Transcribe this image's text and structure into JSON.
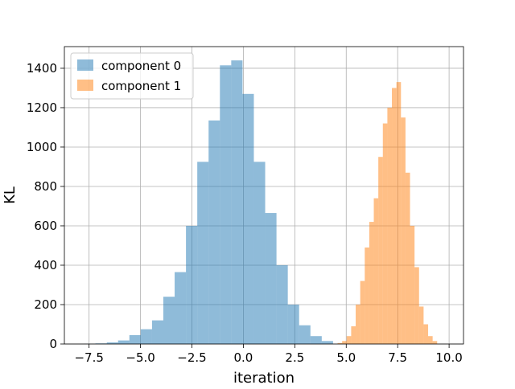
{
  "chart_data": {
    "type": "bar",
    "title": "",
    "xlabel": "iteration",
    "ylabel": "KL",
    "xlim": [
      -8.7,
      10.7
    ],
    "ylim": [
      0,
      1510
    ],
    "xticks": [
      -7.5,
      -5.0,
      -2.5,
      0.0,
      2.5,
      5.0,
      7.5,
      10.0
    ],
    "xtick_labels": [
      "−7.5",
      "−5.0",
      "−2.5",
      "0.0",
      "2.5",
      "5.0",
      "7.5",
      "10.0"
    ],
    "yticks": [
      0,
      200,
      400,
      600,
      800,
      1000,
      1200,
      1400
    ],
    "ytick_labels": [
      "0",
      "200",
      "400",
      "600",
      "800",
      "1000",
      "1200",
      "1400"
    ],
    "grid": true,
    "legend_position": "top-left",
    "series": [
      {
        "name": "component 0",
        "color": "#1f77b4",
        "opacity": 0.5,
        "bin_edges": [
          -7.74,
          -7.19,
          -6.64,
          -6.09,
          -5.54,
          -4.99,
          -4.44,
          -3.89,
          -3.34,
          -2.79,
          -2.24,
          -1.69,
          -1.14,
          -0.59,
          -0.04,
          0.51,
          1.06,
          1.61,
          2.16,
          2.71,
          3.26,
          3.81,
          4.36
        ],
        "values": [
          1,
          3,
          8,
          18,
          45,
          75,
          120,
          240,
          365,
          600,
          925,
          1135,
          1415,
          1440,
          1270,
          925,
          665,
          400,
          200,
          95,
          40,
          15
        ]
      },
      {
        "name": "component 1",
        "color": "#ff7f0e",
        "opacity": 0.5,
        "bin_edges": [
          4.58,
          4.8,
          5.02,
          5.24,
          5.46,
          5.68,
          5.9,
          6.12,
          6.34,
          6.56,
          6.78,
          7.0,
          7.22,
          7.44,
          7.66,
          7.88,
          8.1,
          8.32,
          8.54,
          8.76,
          8.98,
          9.2,
          9.42
        ],
        "values": [
          5,
          15,
          40,
          90,
          200,
          320,
          490,
          620,
          740,
          950,
          1120,
          1200,
          1300,
          1330,
          1150,
          870,
          600,
          390,
          190,
          100,
          40,
          15
        ]
      }
    ]
  }
}
